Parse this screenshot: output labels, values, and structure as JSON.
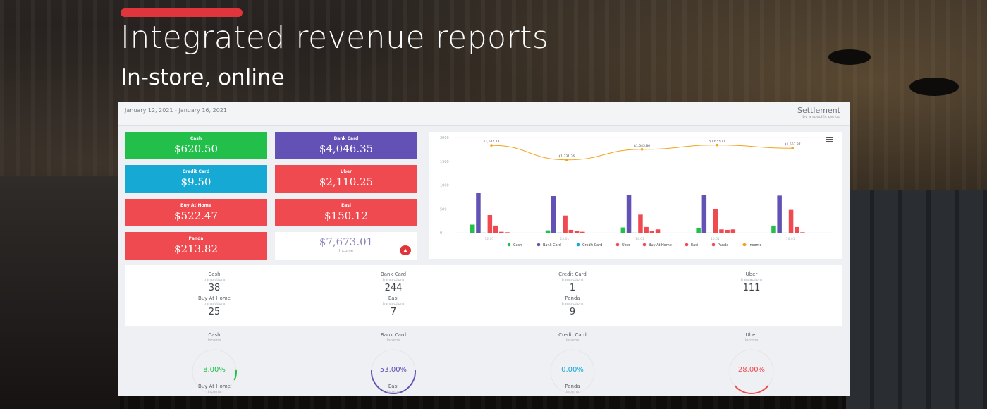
{
  "banner": {
    "title": "Integrated revenue reports",
    "subtitle": "In-store, online",
    "accent_color": "#e0363b"
  },
  "report": {
    "date_range": "January 12, 2021 - January 16, 2021",
    "title": "Settlement",
    "subtitle": "by a specific period"
  },
  "tiles": [
    {
      "label": "Cash",
      "value": "$620.50",
      "color": "#22c04a"
    },
    {
      "label": "Bank Card",
      "value": "$4,046.35",
      "color": "#6451b5"
    },
    {
      "label": "Credit Card",
      "value": "$9.50",
      "color": "#16a9d4"
    },
    {
      "label": "Uber",
      "value": "$2,110.25",
      "color": "#ee4a4f"
    },
    {
      "label": "Buy At Home",
      "value": "$522.47",
      "color": "#ee4a4f"
    },
    {
      "label": "Easi",
      "value": "$150.12",
      "color": "#ee4a4f"
    },
    {
      "label": "Panda",
      "value": "$213.82",
      "color": "#ee4a4f"
    }
  ],
  "total": {
    "value": "$7,673.01",
    "label": "Income",
    "icon": "alert-triangle-icon"
  },
  "chart_data": {
    "type": "bar",
    "categories": [
      "12.01",
      "13.01",
      "14.01",
      "15.01",
      "16.01"
    ],
    "ylim": [
      0,
      2000
    ],
    "yticks": [
      "2000",
      "1500",
      "1000",
      "500",
      "0"
    ],
    "series": [
      {
        "name": "Cash",
        "color": "#22c04a",
        "values": [
          170,
          50,
          110,
          100,
          150
        ]
      },
      {
        "name": "Bank Card",
        "color": "#6451b5",
        "values": [
          840,
          770,
          790,
          800,
          780
        ]
      },
      {
        "name": "Credit Card",
        "color": "#16a9d4",
        "values": [
          2,
          3,
          2,
          1,
          1
        ]
      },
      {
        "name": "Uber",
        "color": "#ee4a4f",
        "values": [
          370,
          360,
          380,
          500,
          480
        ]
      },
      {
        "name": "Buy At Home",
        "color": "#ee4a4f",
        "values": [
          150,
          60,
          120,
          70,
          120
        ]
      },
      {
        "name": "Easi",
        "color": "#ee4a4f",
        "values": [
          20,
          40,
          30,
          60,
          10
        ]
      },
      {
        "name": "Panda",
        "color": "#ee4a4f",
        "values": [
          10,
          20,
          70,
          70,
          0
        ]
      }
    ],
    "line": {
      "name": "Income",
      "color": "#f4a21a",
      "values": [
        1627.18,
        1331.76,
        1545.86,
        1633.71,
        1567.87
      ],
      "labels": [
        "$1,627.18",
        "$1,331.76",
        "$1,545.86",
        "$1,633.71",
        "$1,567.87"
      ]
    },
    "legend_position": "bottom"
  },
  "transactions": [
    {
      "name": "Cash",
      "sub": "transactions",
      "value": "38"
    },
    {
      "name": "Bank Card",
      "sub": "transactions",
      "value": "244"
    },
    {
      "name": "Credit Card",
      "sub": "transactions",
      "value": "1"
    },
    {
      "name": "Uber",
      "sub": "transactions",
      "value": "111"
    },
    {
      "name": "Buy At Home",
      "sub": "transactions",
      "value": "25"
    },
    {
      "name": "Easi",
      "sub": "transactions",
      "value": "7"
    },
    {
      "name": "Panda",
      "sub": "transactions",
      "value": "9"
    }
  ],
  "shares": [
    {
      "name": "Cash",
      "sub": "income",
      "pct_text": "8.00%",
      "fraction": 0.08,
      "color": "#22c04a"
    },
    {
      "name": "Bank Card",
      "sub": "income",
      "pct_text": "53.00%",
      "fraction": 0.53,
      "color": "#6451b5"
    },
    {
      "name": "Credit Card",
      "sub": "income",
      "pct_text": "0.00%",
      "fraction": 0.0,
      "color": "#16a9d4"
    },
    {
      "name": "Uber",
      "sub": "income",
      "pct_text": "28.00%",
      "fraction": 0.28,
      "color": "#ee4a4f"
    }
  ],
  "shares_next_row": [
    {
      "name": "Buy At Home",
      "sub": "income"
    },
    {
      "name": "Easi",
      "sub": "income"
    },
    {
      "name": "Panda",
      "sub": "income"
    }
  ]
}
